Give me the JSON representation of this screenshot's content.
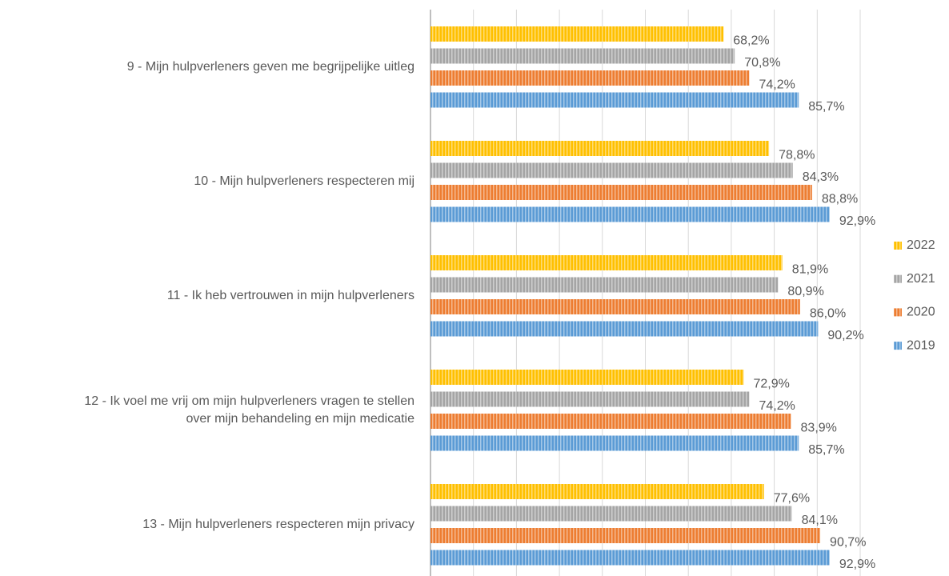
{
  "chart_data": {
    "type": "hbar",
    "categories": [
      "9 - Mijn hulpverleners geven me begrijpelijke uitleg",
      "10 - Mijn hulpverleners respecteren mij",
      "11 - Ik heb vertrouwen in mijn hulpverleners",
      "12 - Ik voel me vrij om mijn hulpverleners vragen te stellen\nover mijn behandeling en mijn medicatie",
      "13 - Mijn hulpverleners respecteren mijn privacy"
    ],
    "series": [
      {
        "name": "2022",
        "color": "#FFC000",
        "values": [
          68.2,
          78.8,
          81.9,
          72.9,
          77.6
        ],
        "value_labels": [
          "68,2%",
          "78,8%",
          "81,9%",
          "72,9%",
          "77,6%"
        ]
      },
      {
        "name": "2021",
        "color": "#A5A5A5",
        "values": [
          70.8,
          84.3,
          80.9,
          74.2,
          84.1
        ],
        "value_labels": [
          "70,8%",
          "84,3%",
          "80,9%",
          "74,2%",
          "84,1%"
        ]
      },
      {
        "name": "2020",
        "color": "#ED7D31",
        "values": [
          74.2,
          88.8,
          86.0,
          83.9,
          90.7
        ],
        "value_labels": [
          "74,2%",
          "88,8%",
          "86,0%",
          "83,9%",
          "90,7%"
        ]
      },
      {
        "name": "2019",
        "color": "#5B9BD5",
        "values": [
          85.7,
          92.9,
          90.2,
          85.7,
          92.9
        ],
        "value_labels": [
          "85,7%",
          "92,9%",
          "90,2%",
          "85,7%",
          "92,9%"
        ]
      }
    ],
    "xlim": [
      0,
      100
    ],
    "xticks": [
      0,
      10,
      20,
      30,
      40,
      50,
      60,
      70,
      80,
      90,
      100
    ],
    "grid": true,
    "legend": "right"
  }
}
